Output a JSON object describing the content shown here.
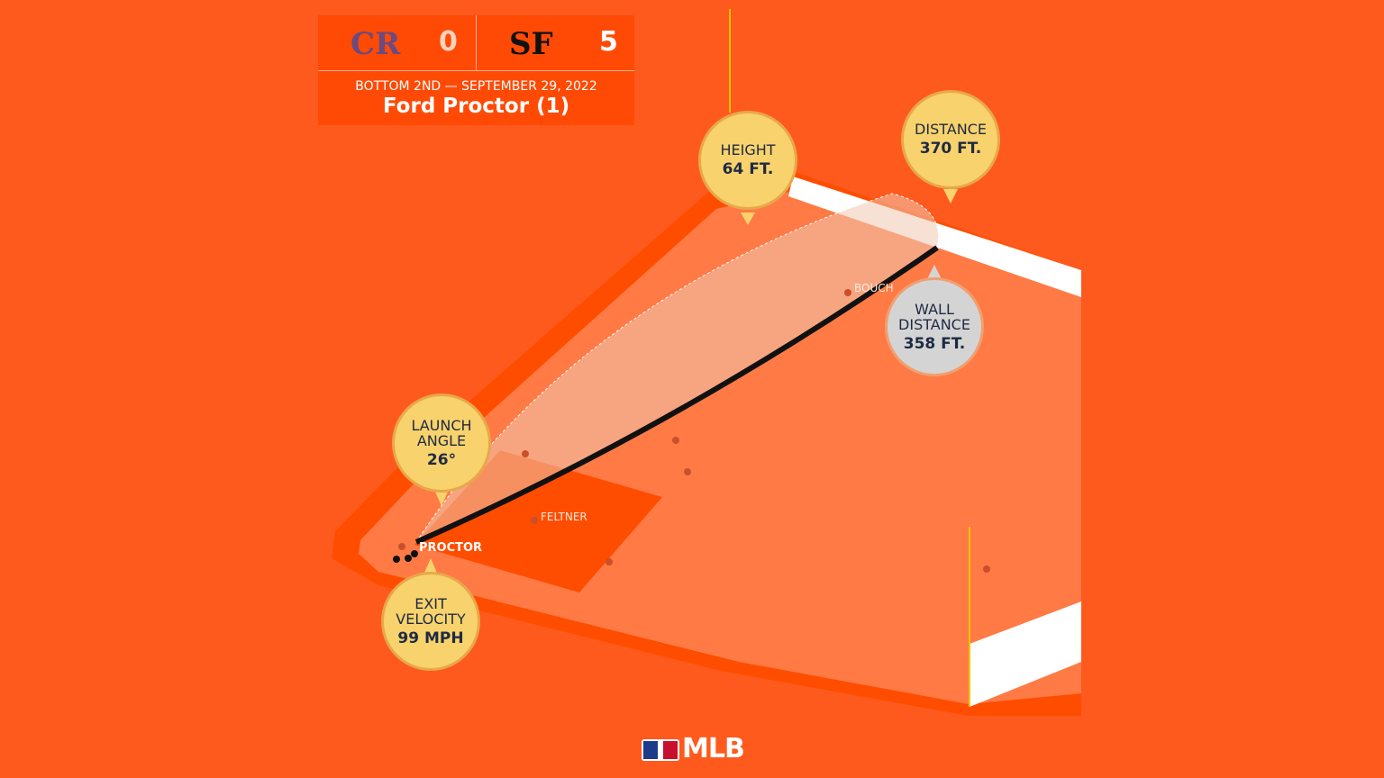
{
  "scoreboard": {
    "away_team": "CR",
    "away_score": "0",
    "home_team": "SF",
    "home_score": "5",
    "inning_date": "BOTTOM 2ND — SEPTEMBER 29, 2022",
    "batter": "Ford Proctor (1)"
  },
  "callouts": [
    {
      "label": "HEIGHT",
      "value": "64 FT."
    },
    {
      "label": "DISTANCE",
      "value": "370 FT."
    },
    {
      "label": "WALL DISTANCE",
      "value": "358 FT."
    },
    {
      "label": "LAUNCH ANGLE",
      "value": "26°"
    },
    {
      "label": "EXIT VELOCITY",
      "value": "99 MPH"
    }
  ],
  "players": [
    "PROCTOR",
    "FELTNER",
    "BOUCH"
  ],
  "logo": "MLB"
}
